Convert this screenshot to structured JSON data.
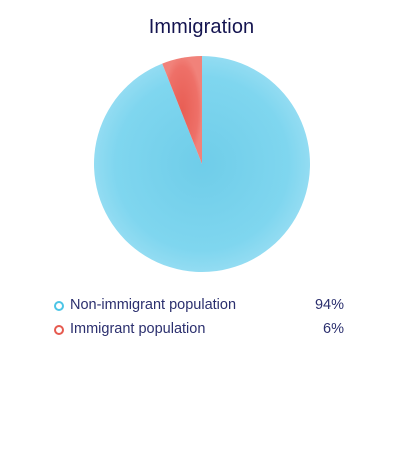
{
  "chart_data": {
    "type": "pie",
    "title": "Immigration",
    "slices": [
      {
        "label": "Non-immigrant population",
        "value": 94,
        "display": "94%",
        "color": "#7dd3ec"
      },
      {
        "label": "Immigrant population",
        "value": 6,
        "display": "6%",
        "color": "#ec6b60"
      }
    ],
    "legend_position": "bottom"
  }
}
